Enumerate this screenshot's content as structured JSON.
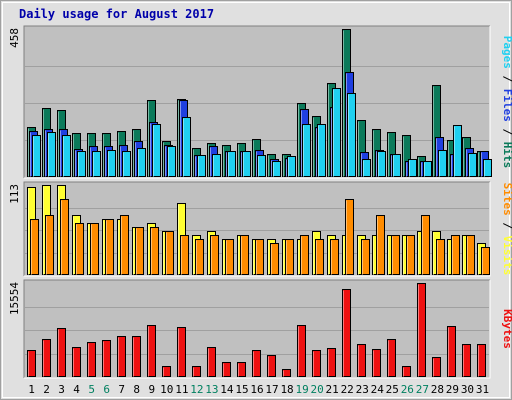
{
  "chart_data": [
    {
      "type": "bar",
      "title": "Daily usage for August 2017",
      "ymax_label": "458",
      "categories": [
        "1",
        "2",
        "3",
        "4",
        "5",
        "6",
        "7",
        "8",
        "9",
        "10",
        "11",
        "12",
        "13",
        "14",
        "15",
        "16",
        "17",
        "18",
        "19",
        "20",
        "21",
        "22",
        "23",
        "24",
        "25",
        "26",
        "27",
        "28",
        "29",
        "30",
        "31"
      ],
      "weekend_days": [
        "5",
        "6",
        "12",
        "13",
        "19",
        "20",
        "26",
        "27"
      ],
      "series": [
        {
          "name": "Hits",
          "color": "#0b7a5a",
          "values": [
            155,
            215,
            207,
            137,
            135,
            137,
            142,
            147,
            237,
            110,
            242,
            90,
            105,
            100,
            105,
            117,
            70,
            70,
            230,
            190,
            290,
            458,
            175,
            150,
            140,
            130,
            65,
            285,
            115,
            125,
            80
          ]
        },
        {
          "name": "Files",
          "color": "#1f3fe0",
          "values": [
            142,
            150,
            150,
            87,
            97,
            95,
            100,
            110,
            170,
            100,
            237,
            67,
            95,
            80,
            80,
            85,
            57,
            60,
            210,
            155,
            218,
            325,
            77,
            85,
            72,
            50,
            50,
            125,
            70,
            90,
            80
          ]
        },
        {
          "name": "Pages",
          "color": "#20d0f0",
          "values": [
            130,
            140,
            130,
            80,
            80,
            85,
            80,
            90,
            165,
            95,
            185,
            67,
            70,
            80,
            80,
            67,
            50,
            65,
            165,
            165,
            275,
            260,
            55,
            80,
            70,
            55,
            50,
            85,
            160,
            75,
            55
          ]
        }
      ],
      "right_label": [
        "Pages",
        "Files",
        "Hits"
      ]
    },
    {
      "type": "bar",
      "ymax_label": "113",
      "categories": [
        "1",
        "2",
        "3",
        "4",
        "5",
        "6",
        "7",
        "8",
        "9",
        "10",
        "11",
        "12",
        "13",
        "14",
        "15",
        "16",
        "17",
        "18",
        "19",
        "20",
        "21",
        "22",
        "23",
        "24",
        "25",
        "26",
        "27",
        "28",
        "29",
        "30",
        "31"
      ],
      "series": [
        {
          "name": "Visits",
          "color": "#ffff33",
          "values": [
            110,
            113,
            113,
            75,
            65,
            70,
            70,
            60,
            65,
            55,
            90,
            50,
            55,
            45,
            50,
            45,
            45,
            45,
            45,
            55,
            50,
            50,
            50,
            50,
            50,
            50,
            55,
            55,
            45,
            50,
            40
          ]
        },
        {
          "name": "Sites",
          "color": "#ff8c00",
          "values": [
            70,
            75,
            95,
            65,
            65,
            70,
            75,
            60,
            60,
            55,
            50,
            45,
            50,
            45,
            50,
            45,
            40,
            45,
            50,
            45,
            45,
            95,
            45,
            75,
            50,
            50,
            75,
            45,
            50,
            50,
            35
          ]
        }
      ],
      "right_label": [
        "Sites",
        "Visits"
      ]
    },
    {
      "type": "bar",
      "ymax_label": "15554",
      "categories": [
        "1",
        "2",
        "3",
        "4",
        "5",
        "6",
        "7",
        "8",
        "9",
        "10",
        "11",
        "12",
        "13",
        "14",
        "15",
        "16",
        "17",
        "18",
        "19",
        "20",
        "21",
        "22",
        "23",
        "24",
        "25",
        "26",
        "27",
        "28",
        "29",
        "30",
        "31"
      ],
      "series": [
        {
          "name": "KBytes",
          "color": "#ee1111",
          "values": [
            4400,
            6300,
            8100,
            4900,
            5800,
            6200,
            6800,
            6800,
            8600,
            1800,
            8300,
            1800,
            5000,
            2500,
            2400,
            4500,
            3700,
            1400,
            8600,
            4500,
            4800,
            14500,
            5400,
            4600,
            6300,
            1900,
            15554,
            3300,
            8500,
            5500,
            5400
          ]
        }
      ],
      "right_label": [
        "KBytes"
      ]
    }
  ]
}
